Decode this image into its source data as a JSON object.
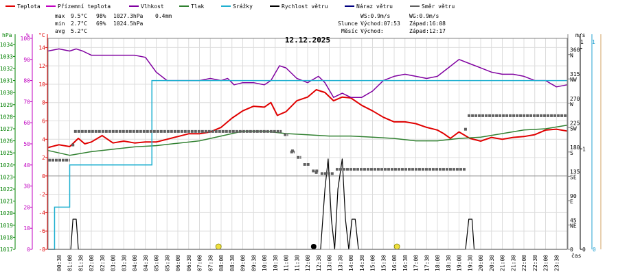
{
  "chart_data": {
    "type": "line",
    "title": "12.12.2025",
    "x_axis": {
      "label": "čas",
      "ticks": [
        "00:30",
        "01:00",
        "01:30",
        "02:00",
        "02:30",
        "03:00",
        "03:30",
        "04:00",
        "04:30",
        "05:00",
        "05:30",
        "06:00",
        "06:30",
        "07:00",
        "07:30",
        "08:00",
        "08:30",
        "09:00",
        "09:30",
        "10:00",
        "10:30",
        "11:00",
        "11:30",
        "12:00",
        "12:30",
        "13:00",
        "13:30",
        "14:00",
        "14:30",
        "15:00",
        "15:30",
        "16:00",
        "16:30",
        "17:00",
        "17:30",
        "18:00",
        "18:30",
        "19:00",
        "19:30",
        "20:00",
        "20:30",
        "21:00",
        "21:30",
        "22:00",
        "22:30",
        "23:00",
        "23:30"
      ],
      "range_h": [
        0,
        24
      ]
    },
    "left_axes": [
      {
        "unit": "hPa",
        "color": "#008000",
        "range": [
          1017,
          1034.5
        ],
        "ticks": [
          1017,
          1018,
          1019,
          1020,
          1021,
          1022,
          1023,
          1024,
          1025,
          1026,
          1027,
          1028,
          1029,
          1030,
          1031,
          1032,
          1033,
          1034
        ]
      },
      {
        "unit": "%",
        "color": "#c000c0",
        "range": [
          0,
          100
        ],
        "ticks": [
          0,
          10,
          20,
          30,
          40,
          50,
          60,
          70,
          80,
          90,
          100
        ]
      },
      {
        "unit": "°C",
        "color": "#e00000",
        "range": [
          -8,
          15
        ],
        "ticks": [
          -8,
          -6,
          -4,
          -2,
          0,
          2,
          4,
          6,
          8,
          10,
          12,
          14
        ]
      }
    ],
    "right_axes": [
      {
        "unit": "°",
        "color": "#000000",
        "range": [
          0,
          390
        ],
        "ticks": [
          0,
          45,
          90,
          135,
          180,
          225,
          270,
          315,
          360
        ],
        "labels": [
          "",
          "NE",
          "E",
          "SE",
          "S",
          "SW",
          "W",
          "NW",
          "N"
        ]
      },
      {
        "unit": "m/s",
        "color": "#000000",
        "range": [
          0,
          2.1
        ],
        "ticks": [
          0,
          1,
          2
        ]
      },
      {
        "unit": "mm",
        "color": "#00a0c0",
        "range": [
          0,
          0.5
        ],
        "ticks": [
          0
        ]
      }
    ],
    "legend": [
      {
        "name": "Teplota",
        "color": "#e00000"
      },
      {
        "name": "Přízemní teplota",
        "color": "#c000c0"
      },
      {
        "name": "Vlhkost",
        "color": "#8000a0"
      },
      {
        "name": "Tlak",
        "color": "#308030"
      },
      {
        "name": "Srážky",
        "color": "#20b0d0"
      },
      {
        "name": "Rychlost větru",
        "color": "#000000"
      },
      {
        "name": "Náraz větru",
        "color": "#000080"
      },
      {
        "name": "Směr větru",
        "color": "#606060"
      }
    ],
    "stats": {
      "max": {
        "label": "max",
        "temp": "9.5°C",
        "hum": "98%",
        "pres": "1027.3hPa",
        "rain": "0.4mm"
      },
      "min": {
        "label": "min",
        "temp": "2.7°C",
        "hum": "69%",
        "pres": "1024.5hPa"
      },
      "avg": {
        "label": "avg",
        "temp": "5.2°C"
      }
    },
    "wind_info": {
      "ws": "WS:0.9m/s",
      "wg": "WG:0.9m/s"
    },
    "sun": {
      "label": "Slunce",
      "rise": "Východ:07:53",
      "set": "Západ:16:08"
    },
    "moon": {
      "label": "Měsíc",
      "rise": "Východ:",
      "set": "Západ:12:17"
    },
    "series": [
      {
        "name": "Teplota",
        "axis": "°C",
        "color": "#e00000",
        "points": [
          [
            0,
            3.1
          ],
          [
            0.5,
            3.4
          ],
          [
            1,
            3.2
          ],
          [
            1.4,
            4.1
          ],
          [
            1.7,
            3.5
          ],
          [
            2,
            3.7
          ],
          [
            2.5,
            4.4
          ],
          [
            3,
            3.6
          ],
          [
            3.5,
            3.8
          ],
          [
            4,
            3.6
          ],
          [
            4.5,
            3.7
          ],
          [
            5,
            3.7
          ],
          [
            5.5,
            4.0
          ],
          [
            6,
            4.3
          ],
          [
            6.5,
            4.6
          ],
          [
            7,
            4.6
          ],
          [
            7.5,
            4.8
          ],
          [
            8,
            5.3
          ],
          [
            8.5,
            6.3
          ],
          [
            9,
            7.1
          ],
          [
            9.5,
            7.6
          ],
          [
            10,
            7.5
          ],
          [
            10.3,
            8.0
          ],
          [
            10.6,
            6.6
          ],
          [
            11,
            7.0
          ],
          [
            11.5,
            8.2
          ],
          [
            12,
            8.6
          ],
          [
            12.4,
            9.4
          ],
          [
            12.8,
            9.1
          ],
          [
            13.2,
            8.2
          ],
          [
            13.6,
            8.6
          ],
          [
            14,
            8.5
          ],
          [
            14.5,
            7.7
          ],
          [
            15,
            7.1
          ],
          [
            15.5,
            6.4
          ],
          [
            16,
            5.9
          ],
          [
            16.5,
            5.9
          ],
          [
            17,
            5.7
          ],
          [
            17.5,
            5.3
          ],
          [
            18,
            5.0
          ],
          [
            18.3,
            4.6
          ],
          [
            18.6,
            4.1
          ],
          [
            19,
            4.8
          ],
          [
            19.5,
            4.1
          ],
          [
            20,
            3.8
          ],
          [
            20.5,
            4.2
          ],
          [
            21,
            4.0
          ],
          [
            21.5,
            4.2
          ],
          [
            22,
            4.3
          ],
          [
            22.5,
            4.5
          ],
          [
            23,
            5.0
          ],
          [
            23.5,
            5.1
          ],
          [
            24,
            4.9
          ]
        ]
      },
      {
        "name": "Vlhkost",
        "axis": "%",
        "color": "#8000a0",
        "points": [
          [
            0,
            94
          ],
          [
            0.5,
            95
          ],
          [
            1,
            94
          ],
          [
            1.3,
            95
          ],
          [
            1.6,
            94
          ],
          [
            2,
            92
          ],
          [
            3,
            92
          ],
          [
            4,
            92
          ],
          [
            4.5,
            91
          ],
          [
            5,
            84
          ],
          [
            5.5,
            80
          ],
          [
            6,
            80
          ],
          [
            7,
            80
          ],
          [
            7.5,
            81
          ],
          [
            8,
            80
          ],
          [
            8.3,
            81
          ],
          [
            8.6,
            78
          ],
          [
            9,
            79
          ],
          [
            9.5,
            79
          ],
          [
            10,
            78
          ],
          [
            10.3,
            80
          ],
          [
            10.7,
            87
          ],
          [
            11,
            86
          ],
          [
            11.5,
            81
          ],
          [
            12,
            79
          ],
          [
            12.5,
            82
          ],
          [
            12.8,
            79
          ],
          [
            13.2,
            72
          ],
          [
            13.6,
            74
          ],
          [
            14,
            72
          ],
          [
            14.5,
            72
          ],
          [
            15,
            75
          ],
          [
            15.5,
            80
          ],
          [
            16,
            82
          ],
          [
            16.5,
            83
          ],
          [
            17,
            82
          ],
          [
            17.5,
            81
          ],
          [
            18,
            82
          ],
          [
            18.5,
            86
          ],
          [
            19,
            90
          ],
          [
            19.5,
            88
          ],
          [
            20,
            86
          ],
          [
            20.5,
            84
          ],
          [
            21,
            83
          ],
          [
            21.5,
            83
          ],
          [
            22,
            82
          ],
          [
            22.5,
            80
          ],
          [
            23,
            80
          ],
          [
            23.5,
            77
          ],
          [
            24,
            78
          ]
        ]
      },
      {
        "name": "Tlak",
        "axis": "hPa",
        "color": "#308030",
        "points": [
          [
            0,
            1025.2
          ],
          [
            1,
            1024.8
          ],
          [
            2,
            1025.1
          ],
          [
            3,
            1025.3
          ],
          [
            4,
            1025.5
          ],
          [
            5,
            1025.6
          ],
          [
            6,
            1025.8
          ],
          [
            7,
            1026.0
          ],
          [
            8,
            1026.4
          ],
          [
            9,
            1026.8
          ],
          [
            10,
            1026.8
          ],
          [
            11,
            1026.6
          ],
          [
            12,
            1026.5
          ],
          [
            13,
            1026.4
          ],
          [
            14,
            1026.4
          ],
          [
            15,
            1026.3
          ],
          [
            16,
            1026.2
          ],
          [
            17,
            1026.0
          ],
          [
            18,
            1026.0
          ],
          [
            19,
            1026.2
          ],
          [
            20,
            1026.3
          ],
          [
            21,
            1026.6
          ],
          [
            22,
            1026.9
          ],
          [
            23,
            1027.0
          ],
          [
            24,
            1027.3
          ]
        ]
      },
      {
        "name": "Srážky",
        "axis": "mm",
        "color": "#20b0d0",
        "steps": [
          [
            0,
            0
          ],
          [
            0.3,
            0.1
          ],
          [
            1,
            0.2
          ],
          [
            4.7,
            0.2
          ],
          [
            4.8,
            0.4
          ],
          [
            24,
            0.4
          ]
        ]
      },
      {
        "name": "Rychlost větru",
        "axis": "m/s",
        "color": "#000000",
        "points": [
          [
            0,
            0
          ],
          [
            1.05,
            0
          ],
          [
            1.15,
            0.3
          ],
          [
            1.3,
            0.3
          ],
          [
            1.4,
            0
          ],
          [
            12.6,
            0
          ],
          [
            12.8,
            0.6
          ],
          [
            12.95,
            0.9
          ],
          [
            13.1,
            0.3
          ],
          [
            13.25,
            0
          ],
          [
            13.4,
            0.6
          ],
          [
            13.6,
            0.9
          ],
          [
            13.75,
            0.3
          ],
          [
            13.9,
            0
          ],
          [
            14.05,
            0.3
          ],
          [
            14.2,
            0.3
          ],
          [
            14.35,
            0
          ],
          [
            19.3,
            0
          ],
          [
            19.45,
            0.3
          ],
          [
            19.6,
            0.3
          ],
          [
            19.7,
            0
          ],
          [
            24,
            0
          ]
        ]
      },
      {
        "name": "Směr větru",
        "axis": "°",
        "color": "#606060",
        "segments": [
          [
            0.0,
            1.0,
            165
          ],
          [
            1.2,
            10.8,
            218
          ],
          [
            10.9,
            11.1,
            212
          ],
          [
            11.2,
            11.4,
            180
          ],
          [
            11.5,
            11.7,
            170
          ],
          [
            11.8,
            12.1,
            157
          ],
          [
            12.2,
            12.5,
            145
          ],
          [
            12.6,
            13.2,
            140
          ],
          [
            13.3,
            19.3,
            148
          ],
          [
            19.4,
            24,
            247
          ]
        ],
        "dots": [
          [
            1.15,
            193
          ],
          [
            11.3,
            182
          ],
          [
            12.4,
            142
          ],
          [
            19.3,
            222
          ]
        ]
      }
    ],
    "markers": [
      {
        "type": "sunrise",
        "color": "#f0e040",
        "x": 7.88
      },
      {
        "type": "moonset",
        "color": "#000000",
        "x": 12.28
      },
      {
        "type": "sunset",
        "color": "#f0e040",
        "x": 16.13
      }
    ]
  }
}
